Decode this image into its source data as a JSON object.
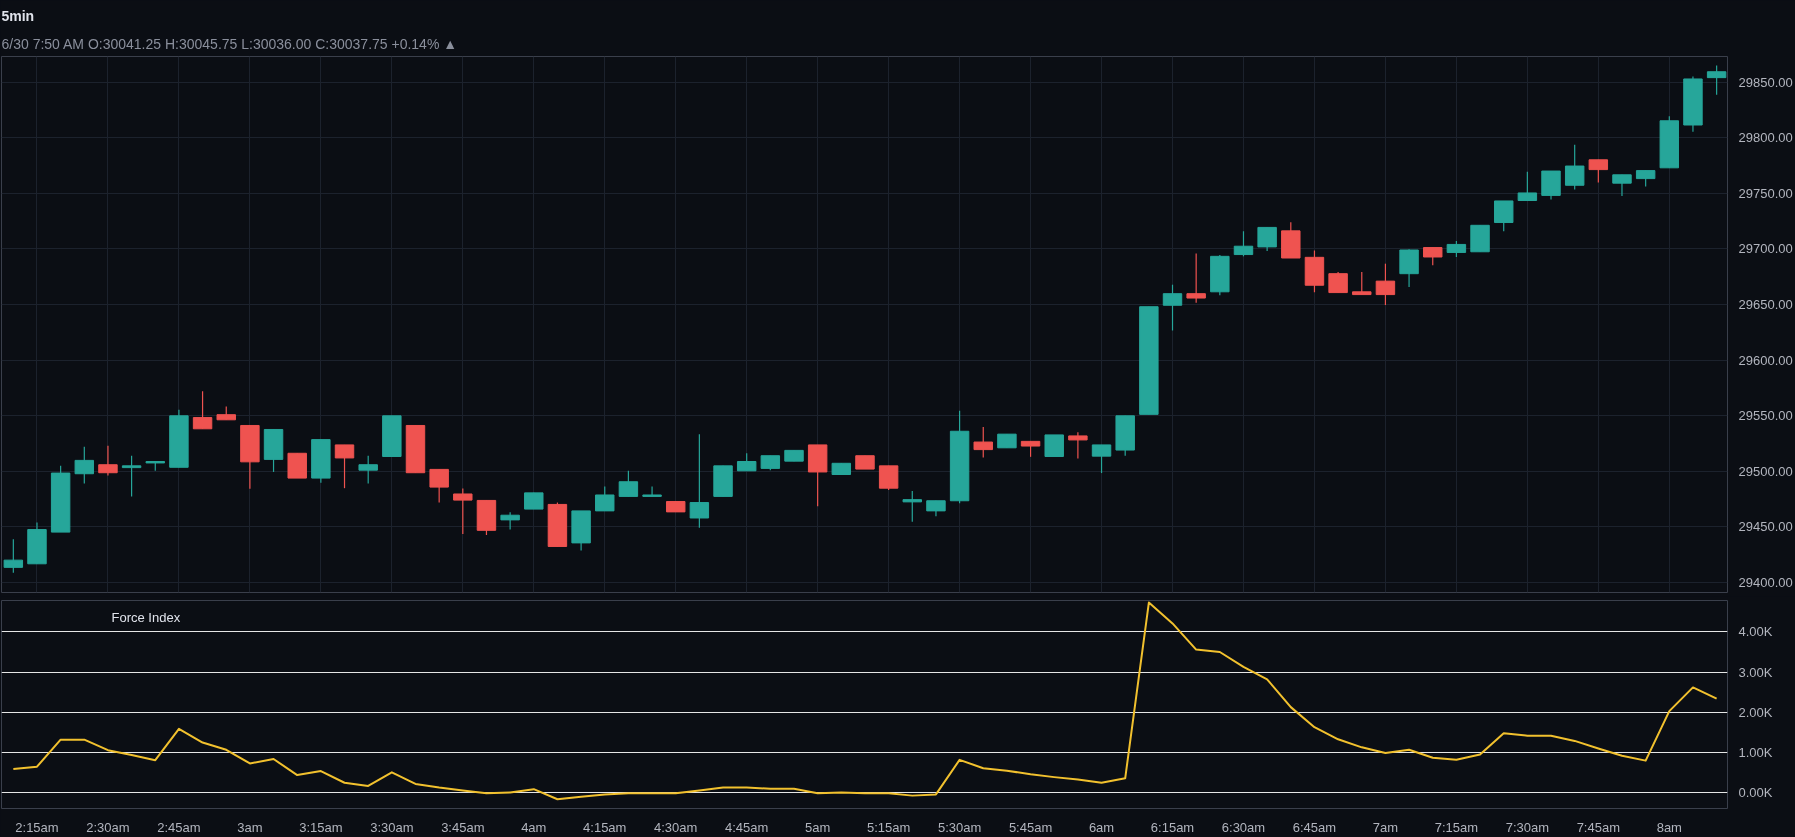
{
  "chart_data": [
    {
      "type": "candlestick",
      "title": "5min",
      "subtitle": "6/30 7:50 AM O:30041.25 H:30045.75 L:30036.00 C:30037.75 +0.14% ▲",
      "x": [
        2.1667,
        2.25,
        2.3333,
        2.4167,
        2.5,
        2.5833,
        2.6667,
        2.75,
        2.8333,
        2.9167,
        3,
        3.0833,
        3.1667,
        3.25,
        3.3333,
        3.4167,
        3.5,
        3.5833,
        3.6667,
        3.75,
        3.8333,
        3.9167,
        4,
        4.0833,
        4.1667,
        4.25,
        4.3333,
        4.4167,
        4.5,
        4.5833,
        4.6667,
        4.75,
        4.8333,
        4.9167,
        5,
        5.0833,
        5.1667,
        5.25,
        5.3333,
        5.4167,
        5.5,
        5.5833,
        5.6667,
        5.75,
        5.8333,
        5.9167,
        6,
        6.0833,
        6.1667,
        6.25,
        6.3333,
        6.4167,
        6.5,
        6.5833,
        6.6667,
        6.75,
        6.8333,
        6.9167,
        7,
        7.0833,
        7.1667,
        7.25,
        7.3333,
        7.4167,
        7.5,
        7.5833,
        7.6667,
        7.75,
        7.8333,
        7.9167,
        8,
        8.0833,
        8.1667
      ],
      "ohlc": [
        [
          29413.6,
          29438.8,
          29408.7,
          29420.1
        ],
        [
          29416.8,
          29454,
          29416.8,
          29447.6
        ],
        [
          29445.3,
          29504.9,
          29445.3,
          29498.4
        ],
        [
          29497.8,
          29522.1,
          29489,
          29509.8
        ],
        [
          29505.9,
          29523,
          29496.2,
          29498.7
        ],
        [
          29503.3,
          29514,
          29477.4,
          29504.9
        ],
        [
          29507.5,
          29508.8,
          29500.4,
          29508.8
        ],
        [
          29503.6,
          29555.4,
          29503.6,
          29549.9
        ],
        [
          29548.3,
          29571.9,
          29538.2,
          29538.2
        ],
        [
          29550.9,
          29558.3,
          29546.3,
          29546.3
        ],
        [
          29541.2,
          29541.2,
          29484.2,
          29508.5
        ],
        [
          29510.7,
          29537.6,
          29499.4,
          29537.6
        ],
        [
          29516.2,
          29516.2,
          29493.9,
          29493.9
        ],
        [
          29493.9,
          29528.5,
          29489.7,
          29528.5
        ],
        [
          29523.7,
          29523.7,
          29484.8,
          29512
        ],
        [
          29501,
          29514,
          29489,
          29505.9
        ],
        [
          29513.3,
          29549.9,
          29513.3,
          29549.9
        ],
        [
          29541.2,
          29541.2,
          29498.7,
          29498.7
        ],
        [
          29501.7,
          29501.7,
          29471.9,
          29485.8
        ],
        [
          29479.6,
          29484.5,
          29443.7,
          29474.1
        ],
        [
          29473.8,
          29473.8,
          29442.7,
          29446.9
        ],
        [
          29456.3,
          29463.1,
          29447.6,
          29460.5
        ],
        [
          29466,
          29480.6,
          29466,
          29480.6
        ],
        [
          29470.2,
          29471.9,
          29432.4,
          29432.4
        ],
        [
          29435.6,
          29464.4,
          29428.8,
          29464.4
        ],
        [
          29464.4,
          29486.4,
          29464.4,
          29478.7
        ],
        [
          29477.4,
          29500.4,
          29477.4,
          29490.6
        ],
        [
          29477.4,
          29486.4,
          29477.4,
          29478.7
        ],
        [
          29472.8,
          29472.8,
          29463.5,
          29463.5
        ],
        [
          29458,
          29533.4,
          29449.2,
          29471.9
        ],
        [
          29477.4,
          29504.9,
          29477.4,
          29504.9
        ],
        [
          29500.4,
          29516.2,
          29500.4,
          29508.8
        ],
        [
          29502.6,
          29514,
          29501,
          29514
        ],
        [
          29509.1,
          29518.8,
          29509.1,
          29518.8
        ],
        [
          29523.7,
          29523.7,
          29468.6,
          29499.4
        ],
        [
          29497.1,
          29507.2,
          29497.1,
          29507.2
        ],
        [
          29514,
          29514,
          29502,
          29502
        ],
        [
          29504.9,
          29504.9,
          29483.2,
          29484.8
        ],
        [
          29472.5,
          29482.2,
          29454.7,
          29474.5
        ],
        [
          29464.4,
          29473.5,
          29459.6,
          29473.5
        ],
        [
          29473.5,
          29554.4,
          29471.2,
          29536
        ],
        [
          29526.3,
          29539.9,
          29512.3,
          29519.5
        ],
        [
          29521.1,
          29533.4,
          29521.1,
          29533.4
        ],
        [
          29526.9,
          29526.9,
          29513,
          29522.7
        ],
        [
          29513.3,
          29532.7,
          29513.3,
          29532.7
        ],
        [
          29531.8,
          29535,
          29511.4,
          29528.2
        ],
        [
          29513.6,
          29523.7,
          29498.4,
          29523.7
        ],
        [
          29519.1,
          29549.9,
          29514,
          29549.9
        ],
        [
          29551.2,
          29648,
          29551.2,
          29648
        ],
        [
          29649.3,
          29667.8,
          29626.6,
          29659.7
        ],
        [
          29659.7,
          29695.9,
          29651.6,
          29655.8
        ],
        [
          29661.4,
          29694.6,
          29658.2,
          29693.3
        ],
        [
          29694.9,
          29715.8,
          29693.3,
          29702.4
        ],
        [
          29701.8,
          29719.3,
          29698,
          29719.3
        ],
        [
          29716.2,
          29724,
          29691.8,
          29691.8
        ],
        [
          29692.4,
          29698.6,
          29661,
          29667.3
        ],
        [
          29677.7,
          29679.2,
          29660.7,
          29660.7
        ],
        [
          29661.4,
          29679.2,
          29658.9,
          29658.9
        ],
        [
          29671,
          29686.7,
          29649.5,
          29658.9
        ],
        [
          29677.7,
          29699.6,
          29665.8,
          29699
        ],
        [
          29701.2,
          29701.2,
          29685.2,
          29692.7
        ],
        [
          29696.8,
          29707.1,
          29692.7,
          29704
        ],
        [
          29697.4,
          29721.2,
          29697.4,
          29721.2
        ],
        [
          29723.7,
          29743.1,
          29715.8,
          29743.1
        ],
        [
          29743.5,
          29769.4,
          29743,
          29750.3
        ],
        [
          29748.1,
          29770,
          29744.4,
          29770
        ],
        [
          29757.2,
          29793.6,
          29753.5,
          29774.5
        ],
        [
          29780.1,
          29780.1,
          29759.8,
          29771.3
        ],
        [
          29759.1,
          29766.6,
          29747.5,
          29766.6
        ],
        [
          29763.2,
          29770.4,
          29756,
          29770.4
        ],
        [
          29772.9,
          29819.2,
          29772.9,
          29815.2
        ],
        [
          29811.4,
          29855,
          29805.4,
          29852.8
        ],
        [
          29854,
          29865,
          29838.7,
          29859.3
        ]
      ],
      "colors": [
        "#26a69a",
        "#26a69a",
        "#26a69a",
        "#26a69a",
        "#ef5350",
        "#26a69a",
        "#26a69a",
        "#26a69a",
        "#ef5350",
        "#ef5350",
        "#ef5350",
        "#26a69a",
        "#ef5350",
        "#26a69a",
        "#ef5350",
        "#26a69a",
        "#26a69a",
        "#ef5350",
        "#ef5350",
        "#ef5350",
        "#ef5350",
        "#26a69a",
        "#26a69a",
        "#ef5350",
        "#26a69a",
        "#26a69a",
        "#26a69a",
        "#26a69a",
        "#ef5350",
        "#26a69a",
        "#26a69a",
        "#26a69a",
        "#26a69a",
        "#26a69a",
        "#ef5350",
        "#26a69a",
        "#ef5350",
        "#ef5350",
        "#26a69a",
        "#26a69a",
        "#26a69a",
        "#ef5350",
        "#26a69a",
        "#ef5350",
        "#26a69a",
        "#ef5350",
        "#26a69a",
        "#26a69a",
        "#26a69a",
        "#26a69a",
        "#ef5350",
        "#26a69a",
        "#26a69a",
        "#26a69a",
        "#ef5350",
        "#ef5350",
        "#ef5350",
        "#ef5350",
        "#ef5350",
        "#26a69a",
        "#ef5350",
        "#26a69a",
        "#26a69a",
        "#26a69a",
        "#26a69a",
        "#26a69a",
        "#26a69a",
        "#ef5350",
        "#26a69a",
        "#26a69a",
        "#26a69a",
        "#26a69a",
        "#26a69a"
      ],
      "xlim": [
        2.125,
        8.205
      ],
      "ylim": [
        29391,
        29873
      ],
      "xticks": [
        {
          "value": 2.25,
          "label": null
        },
        {
          "value": 2.5,
          "label": null
        },
        {
          "value": 2.75,
          "label": null
        },
        {
          "value": 3,
          "label": null
        },
        {
          "value": 3.25,
          "label": null
        },
        {
          "value": 3.5,
          "label": null
        },
        {
          "value": 3.75,
          "label": null
        },
        {
          "value": 4,
          "label": null
        },
        {
          "value": 4.25,
          "label": null
        },
        {
          "value": 4.5,
          "label": null
        },
        {
          "value": 4.75,
          "label": null
        },
        {
          "value": 5,
          "label": null
        },
        {
          "value": 5.25,
          "label": null
        },
        {
          "value": 5.5,
          "label": null
        },
        {
          "value": 5.75,
          "label": null
        },
        {
          "value": 6,
          "label": null
        },
        {
          "value": 6.25,
          "label": null
        },
        {
          "value": 6.5,
          "label": null
        },
        {
          "value": 6.75,
          "label": null
        },
        {
          "value": 7,
          "label": null
        },
        {
          "value": 7.25,
          "label": null
        },
        {
          "value": 7.5,
          "label": null
        },
        {
          "value": 7.75,
          "label": null
        },
        {
          "value": 8,
          "label": null
        }
      ],
      "yticks": [
        {
          "value": 29400,
          "label": "29400.00"
        },
        {
          "value": 29450,
          "label": "29450.00"
        },
        {
          "value": 29500,
          "label": "29500.00"
        },
        {
          "value": 29550,
          "label": "29550.00"
        },
        {
          "value": 29600,
          "label": "29600.00"
        },
        {
          "value": 29650,
          "label": "29650.00"
        },
        {
          "value": 29700,
          "label": "29700.00"
        },
        {
          "value": 29750,
          "label": "29750.00"
        },
        {
          "value": 29800,
          "label": "29800.00"
        },
        {
          "value": 29850,
          "label": "29850.00"
        }
      ],
      "grid": true,
      "tick_labels": "y"
    },
    {
      "type": "line",
      "x": [
        2.1667,
        2.25,
        2.3333,
        2.4167,
        2.5,
        2.5833,
        2.6667,
        2.75,
        2.8333,
        2.9167,
        3,
        3.0833,
        3.1667,
        3.25,
        3.3333,
        3.4167,
        3.5,
        3.5833,
        3.6667,
        3.75,
        3.8333,
        3.9167,
        4,
        4.0833,
        4.1667,
        4.25,
        4.3333,
        4.4167,
        4.5,
        4.5833,
        4.6667,
        4.75,
        4.8333,
        4.9167,
        5,
        5.0833,
        5.1667,
        5.25,
        5.3333,
        5.4167,
        5.5,
        5.5833,
        5.6667,
        5.75,
        5.8333,
        5.9167,
        6,
        6.0833,
        6.1667,
        6.25,
        6.3333,
        6.4167,
        6.5,
        6.5833,
        6.6667,
        6.75,
        6.8333,
        6.9167,
        7,
        7.0833,
        7.1667,
        7.25,
        7.3333,
        7.4167,
        7.5,
        7.5833,
        7.6667,
        7.75,
        7.8333,
        7.9167,
        8,
        8.0833,
        8.1667
      ],
      "series": [
        {
          "name": "Force Index",
          "color": "#f2c12e",
          "values": [
            590,
            650,
            1320,
            1320,
            1060,
            940,
            810,
            1590,
            1250,
            1070,
            730,
            840,
            440,
            540,
            250,
            170,
            510,
            220,
            130,
            60,
            -10,
            10,
            90,
            -160,
            -100,
            -40,
            -10,
            -10,
            -10,
            60,
            130,
            130,
            100,
            100,
            -10,
            10,
            -10,
            -10,
            -70,
            -40,
            820,
            610,
            550,
            460,
            390,
            330,
            250,
            360,
            4730,
            4210,
            3560,
            3500,
            3130,
            2820,
            2130,
            1630,
            1330,
            1130,
            990,
            1070,
            870,
            820,
            950,
            1480,
            1420,
            1420,
            1290,
            1100,
            920,
            800,
            2030,
            2620,
            2340
          ]
        }
      ],
      "xlim": [
        2.125,
        8.205
      ],
      "ylim": [
        -390,
        4780
      ],
      "xticks": [
        {
          "value": 2.25,
          "label": "2:15am"
        },
        {
          "value": 2.5,
          "label": "2:30am"
        },
        {
          "value": 2.75,
          "label": "2:45am"
        },
        {
          "value": 3,
          "label": "3am"
        },
        {
          "value": 3.25,
          "label": "3:15am"
        },
        {
          "value": 3.5,
          "label": "3:30am"
        },
        {
          "value": 3.75,
          "label": "3:45am"
        },
        {
          "value": 4,
          "label": "4am"
        },
        {
          "value": 4.25,
          "label": "4:15am"
        },
        {
          "value": 4.5,
          "label": "4:30am"
        },
        {
          "value": 4.75,
          "label": "4:45am"
        },
        {
          "value": 5,
          "label": "5am"
        },
        {
          "value": 5.25,
          "label": "5:15am"
        },
        {
          "value": 5.5,
          "label": "5:30am"
        },
        {
          "value": 5.75,
          "label": "5:45am"
        },
        {
          "value": 6,
          "label": "6am"
        },
        {
          "value": 6.25,
          "label": "6:15am"
        },
        {
          "value": 6.5,
          "label": "6:30am"
        },
        {
          "value": 6.75,
          "label": "6:45am"
        },
        {
          "value": 7,
          "label": "7am"
        },
        {
          "value": 7.25,
          "label": "7:15am"
        },
        {
          "value": 7.5,
          "label": "7:30am"
        },
        {
          "value": 7.75,
          "label": "7:45am"
        },
        {
          "value": 8,
          "label": "8am"
        }
      ],
      "yticks": [
        {
          "value": 0,
          "label": "0.00K"
        },
        {
          "value": 1000,
          "label": "1.00K"
        },
        {
          "value": 2000,
          "label": "2.00K"
        },
        {
          "value": 3000,
          "label": "3.00K"
        },
        {
          "value": 4000,
          "label": "4.00K"
        }
      ],
      "grid": "y"
    }
  ]
}
